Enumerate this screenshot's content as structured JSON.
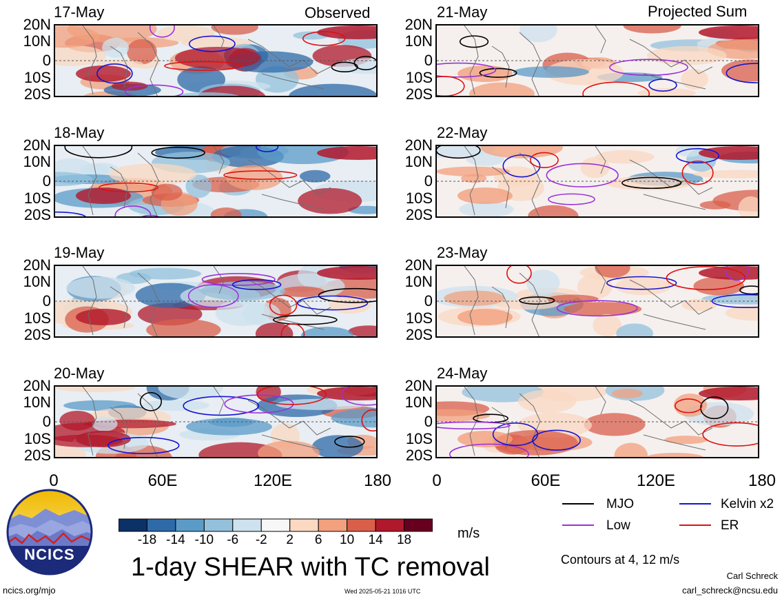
{
  "header": {
    "left_title": "Observed",
    "right_title": "Projected Sum"
  },
  "panels": {
    "observed": [
      {
        "date": "17-May"
      },
      {
        "date": "18-May"
      },
      {
        "date": "19-May"
      },
      {
        "date": "20-May"
      }
    ],
    "projected": [
      {
        "date": "21-May"
      },
      {
        "date": "22-May"
      },
      {
        "date": "23-May"
      },
      {
        "date": "24-May"
      }
    ]
  },
  "axes": {
    "lat_ticks": [
      "20N",
      "10N",
      "0",
      "10S",
      "20S"
    ],
    "lon_ticks": [
      "0",
      "60E",
      "120E",
      "180"
    ]
  },
  "colorbar": {
    "ticks": [
      "-18",
      "-14",
      "-10",
      "-6",
      "-2",
      "2",
      "6",
      "10",
      "14",
      "18"
    ],
    "unit": "m/s",
    "colors": [
      "#0b3167",
      "#2e6aa8",
      "#5b9bc8",
      "#93c1dc",
      "#cde2ee",
      "#f7f7f7",
      "#fad8c2",
      "#f2a07e",
      "#d95f4b",
      "#b2182b",
      "#67001f"
    ]
  },
  "legend": {
    "items": [
      {
        "label": "MJO",
        "color": "#000000"
      },
      {
        "label": "Kelvin x2",
        "color": "#1414d2"
      },
      {
        "label": "Low",
        "color": "#9b30d9"
      },
      {
        "label": "ER",
        "color": "#e01010"
      }
    ],
    "contours_note": "Contours at 4, 12 m/s"
  },
  "footer": {
    "main_title": "1-day SHEAR with TC removal",
    "logo_text": "NCICS",
    "website": "ncics.org/mjo",
    "timestamp": "Wed 2025-05-21 1016 UTC",
    "author": "Carl Schreck",
    "email": "carl_schreck@ncsu.edu"
  }
}
